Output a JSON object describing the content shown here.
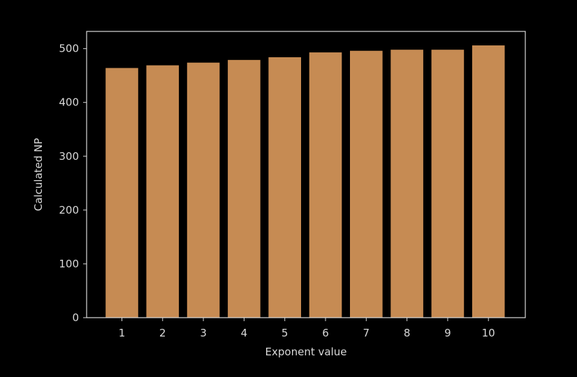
{
  "chart_data": {
    "type": "bar",
    "title": "",
    "xlabel": "Exponent value",
    "ylabel": "Calculated NP",
    "categories": [
      "1",
      "2",
      "3",
      "4",
      "5",
      "6",
      "7",
      "8",
      "9",
      "10"
    ],
    "values": [
      464,
      469,
      474,
      479,
      484,
      493,
      496,
      498,
      498,
      506
    ],
    "ylim": [
      0,
      532
    ],
    "yticks": [
      0,
      100,
      200,
      300,
      400,
      500
    ],
    "grid": false,
    "legend": "none",
    "colors": {
      "background": "#000000",
      "bar": "#c68b53",
      "axis": "#d8d8d8",
      "text": "#d8d8d8"
    }
  }
}
